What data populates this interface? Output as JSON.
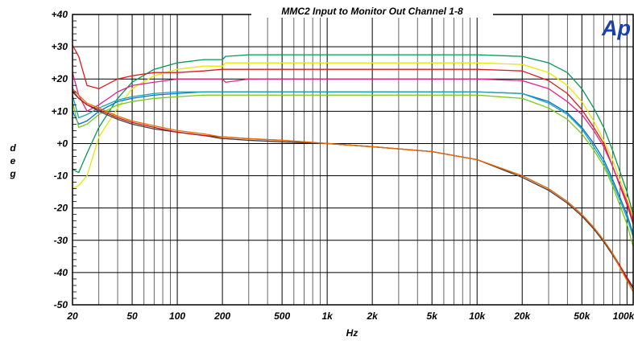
{
  "chart_data": {
    "type": "line",
    "title": "MMC2 Input to Monitor Out Channel 1-8",
    "xlabel": "Hz",
    "ylabel": "deg",
    "xscale": "log",
    "xlim": [
      20,
      110000
    ],
    "ylim": [
      -50,
      40
    ],
    "x_ticks": [
      20,
      50,
      100,
      200,
      500,
      1000,
      2000,
      5000,
      10000,
      20000,
      50000,
      100000
    ],
    "x_tick_labels": [
      "20",
      "50",
      "100",
      "200",
      "500",
      "1k",
      "2k",
      "5k",
      "10k",
      "20k",
      "50k",
      "100k"
    ],
    "y_ticks": [
      40,
      30,
      20,
      10,
      0,
      -10,
      -20,
      -30,
      -40,
      -50
    ],
    "y_tick_labels": [
      "+40",
      "+30",
      "+20",
      "+10",
      "+0",
      "-10",
      "-20",
      "-30",
      "-40",
      "-50"
    ],
    "grid": true,
    "legend": "none",
    "logo_text": "Ap",
    "x": [
      20,
      22,
      25,
      30,
      40,
      50,
      70,
      100,
      150,
      200,
      210,
      300,
      500,
      1000,
      2000,
      5000,
      10000,
      20000,
      30000,
      40000,
      50000,
      60000,
      70000,
      80000,
      100000,
      110000
    ],
    "series": [
      {
        "color": "#009a52",
        "values": [
          -8,
          -9,
          -3,
          5,
          14,
          19,
          23,
          25,
          26,
          26,
          27,
          27.5,
          27.5,
          27.5,
          27.5,
          27.5,
          27.5,
          27,
          25,
          22,
          17,
          11,
          5,
          -2,
          -15,
          -22
        ]
      },
      {
        "color": "#e8e800",
        "values": [
          -14,
          -13,
          -10,
          2,
          11,
          17,
          21,
          23,
          24,
          24,
          25,
          25,
          25,
          25,
          25,
          25,
          25,
          24.5,
          22,
          18,
          13,
          7,
          1,
          -5,
          -17,
          -23
        ]
      },
      {
        "color": "#e01818",
        "values": [
          30.5,
          27,
          18,
          17,
          20,
          21,
          22,
          22,
          22.5,
          23,
          23,
          23,
          23,
          23,
          23,
          23,
          23,
          22.5,
          19.5,
          15.5,
          10.5,
          5,
          0,
          -7,
          -19,
          -25
        ]
      },
      {
        "color": "#e81e8c",
        "values": [
          22,
          15,
          10,
          12,
          16,
          18,
          19,
          20,
          20,
          20,
          19,
          20,
          20,
          20,
          20,
          20,
          20,
          19.5,
          17,
          13,
          9,
          4,
          -1,
          -7,
          -18,
          -24
        ]
      },
      {
        "color": "#0070e0",
        "values": [
          10,
          6,
          7,
          10,
          13,
          14,
          15,
          15.5,
          16,
          16,
          16,
          16,
          16,
          16,
          16,
          16,
          16,
          15.5,
          13,
          9.5,
          5,
          0,
          -5,
          -11,
          -22,
          -28
        ]
      },
      {
        "color": "#18a8a8",
        "values": [
          15,
          8,
          9,
          11,
          13.5,
          14.5,
          15.5,
          16,
          16,
          16,
          16,
          16,
          16,
          16,
          16,
          16,
          16,
          15.5,
          12.5,
          9,
          4.5,
          -1,
          -6,
          -12,
          -23,
          -29
        ]
      },
      {
        "color": "#7ac818",
        "values": [
          13,
          5,
          6,
          9,
          12,
          13,
          14,
          14.5,
          15,
          15,
          15,
          15,
          15,
          15,
          15,
          15,
          15,
          14,
          11,
          7.5,
          3,
          -2,
          -7,
          -13,
          -25,
          -32
        ]
      },
      {
        "color": "#404040",
        "values": [
          16,
          14,
          12,
          10,
          7.5,
          6,
          4.5,
          3.5,
          2.5,
          1.5,
          1.5,
          1,
          0.5,
          0,
          -1,
          -2.5,
          -5,
          -10.5,
          -14.5,
          -18.5,
          -22.5,
          -26.5,
          -30.5,
          -34.5,
          -42,
          -45
        ]
      },
      {
        "color": "#c81414",
        "values": [
          16.5,
          14,
          12,
          10.5,
          8,
          6.5,
          5,
          3.5,
          2.5,
          2,
          2,
          1.5,
          1,
          0,
          -1,
          -2.5,
          -5,
          -10,
          -14,
          -18,
          -22,
          -26,
          -30,
          -34,
          -41.5,
          -44.5
        ]
      },
      {
        "color": "#e86a00",
        "values": [
          17,
          15,
          12.5,
          11,
          8.5,
          7,
          5.5,
          4,
          3,
          2,
          2,
          1.5,
          1,
          0,
          -1,
          -2.5,
          -5,
          -10,
          -14,
          -18,
          -22,
          -26,
          -30,
          -34,
          -42.5,
          -46
        ]
      }
    ]
  }
}
